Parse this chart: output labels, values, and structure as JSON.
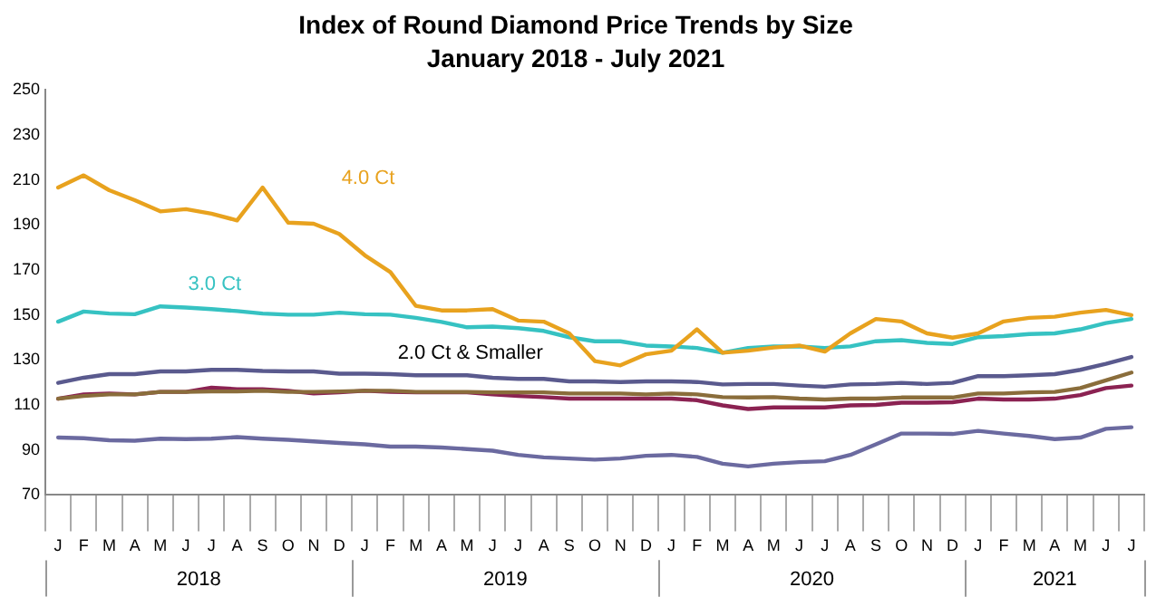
{
  "chart_data": {
    "type": "line",
    "title": "Index of Round Diamond Price Trends by Size",
    "subtitle": "January 2018 - July 2021",
    "categories": [
      "J",
      "F",
      "M",
      "A",
      "M",
      "J",
      "J",
      "A",
      "S",
      "O",
      "N",
      "D",
      "J",
      "F",
      "M",
      "A",
      "M",
      "J",
      "J",
      "A",
      "S",
      "O",
      "N",
      "D",
      "J",
      "F",
      "M",
      "A",
      "M",
      "J",
      "J",
      "A",
      "S",
      "O",
      "N",
      "D",
      "J",
      "F",
      "M",
      "A",
      "M",
      "J",
      "J"
    ],
    "series": [
      {
        "name": "4.0 Ct",
        "color": "#e8a21e",
        "values": [
          206.6,
          212,
          205.4,
          201,
          196,
          197,
          195,
          192,
          206.6,
          191,
          190.5,
          186,
          176.5,
          169,
          154,
          152,
          152,
          152.6,
          147.5,
          147,
          141.8,
          129.5,
          127.6,
          132.5,
          134.1,
          143.6,
          133.2,
          134.1,
          135.5,
          136.4,
          133.7,
          141.8,
          148.2,
          147.1,
          141.8,
          139.9,
          141.8,
          147.1,
          148.7,
          149.2,
          151,
          152.2,
          149.9
        ]
      },
      {
        "name": "3.0 Ct",
        "color": "#36c2c2",
        "values": [
          147,
          151.5,
          150.6,
          150.3,
          153.8,
          153.3,
          152.6,
          151.7,
          150.6,
          150.1,
          150.1,
          151,
          150.3,
          150.1,
          148.7,
          146.9,
          144.5,
          144.8,
          144.1,
          142.9,
          140.1,
          138.3,
          138.3,
          136.4,
          136,
          135.3,
          133.2,
          135.3,
          136,
          136,
          135.3,
          136,
          138.3,
          138.8,
          137.6,
          137.1,
          140.1,
          140.6,
          141.5,
          141.8,
          143.6,
          146.4,
          148.2
        ]
      },
      {
        "name": "2.0 Ct & Smaller",
        "color": "#5a5a8e",
        "values": [
          119.8,
          122.1,
          123.7,
          123.7,
          124.9,
          124.9,
          125.6,
          125.6,
          125.1,
          124.9,
          124.9,
          123.9,
          123.9,
          123.7,
          123.2,
          123.2,
          123.2,
          122.1,
          121.6,
          121.6,
          120.5,
          120.5,
          120.2,
          120.5,
          120.5,
          120.2,
          119.1,
          119.3,
          119.3,
          118.6,
          118.1,
          119.1,
          119.3,
          119.8,
          119.3,
          119.8,
          122.8,
          122.8,
          123.2,
          123.7,
          125.6,
          128.3,
          131.3
        ]
      },
      {
        "color": "#8a6d3b",
        "values": [
          112.8,
          114,
          114.7,
          114.7,
          115.8,
          115.8,
          116,
          116,
          116.3,
          115.8,
          115.8,
          116,
          116.3,
          116.3,
          115.8,
          115.8,
          115.8,
          115.6,
          115.6,
          115.6,
          115.1,
          115.1,
          115.1,
          114.7,
          115.1,
          114.7,
          113.5,
          113.3,
          113.5,
          112.8,
          112.4,
          112.8,
          112.8,
          113.3,
          113.3,
          113.3,
          115.1,
          115.1,
          115.6,
          115.8,
          117.5,
          120.9,
          124.4
        ]
      },
      {
        "color": "#8b2252",
        "values": [
          112.8,
          114.7,
          115.1,
          114.7,
          115.8,
          115.8,
          117.7,
          117,
          117,
          116.3,
          115.1,
          115.6,
          116.3,
          115.8,
          115.6,
          115.6,
          115.6,
          114.7,
          114,
          113.5,
          112.8,
          112.8,
          112.8,
          112.8,
          112.8,
          112.1,
          109.8,
          108.2,
          108.9,
          108.9,
          108.9,
          109.8,
          110,
          111,
          111,
          111.2,
          112.8,
          112.4,
          112.4,
          112.8,
          114.4,
          117.5,
          118.6
        ]
      },
      {
        "color": "#6b6aa0",
        "values": [
          95.5,
          95.2,
          94.3,
          94.1,
          95,
          94.8,
          95,
          95.7,
          95,
          94.5,
          93.8,
          93.1,
          92.5,
          91.5,
          91.5,
          91.1,
          90.4,
          89.7,
          87.8,
          86.7,
          86.2,
          85.7,
          86.2,
          87.4,
          87.8,
          86.9,
          83.9,
          82.7,
          83.9,
          84.6,
          85,
          87.8,
          92.5,
          97.3,
          97.3,
          97.1,
          98.5,
          97.3,
          96.2,
          94.8,
          95.5,
          99.4,
          100.1
        ]
      }
    ],
    "ylim": [
      70,
      250
    ],
    "yticks": [
      70,
      90,
      110,
      130,
      150,
      170,
      190,
      210,
      230,
      250
    ],
    "annotations": [
      "2018",
      "2019",
      "2020",
      "2021"
    ],
    "grid": false,
    "legend": false,
    "marker": "none",
    "line_style": "solid"
  }
}
